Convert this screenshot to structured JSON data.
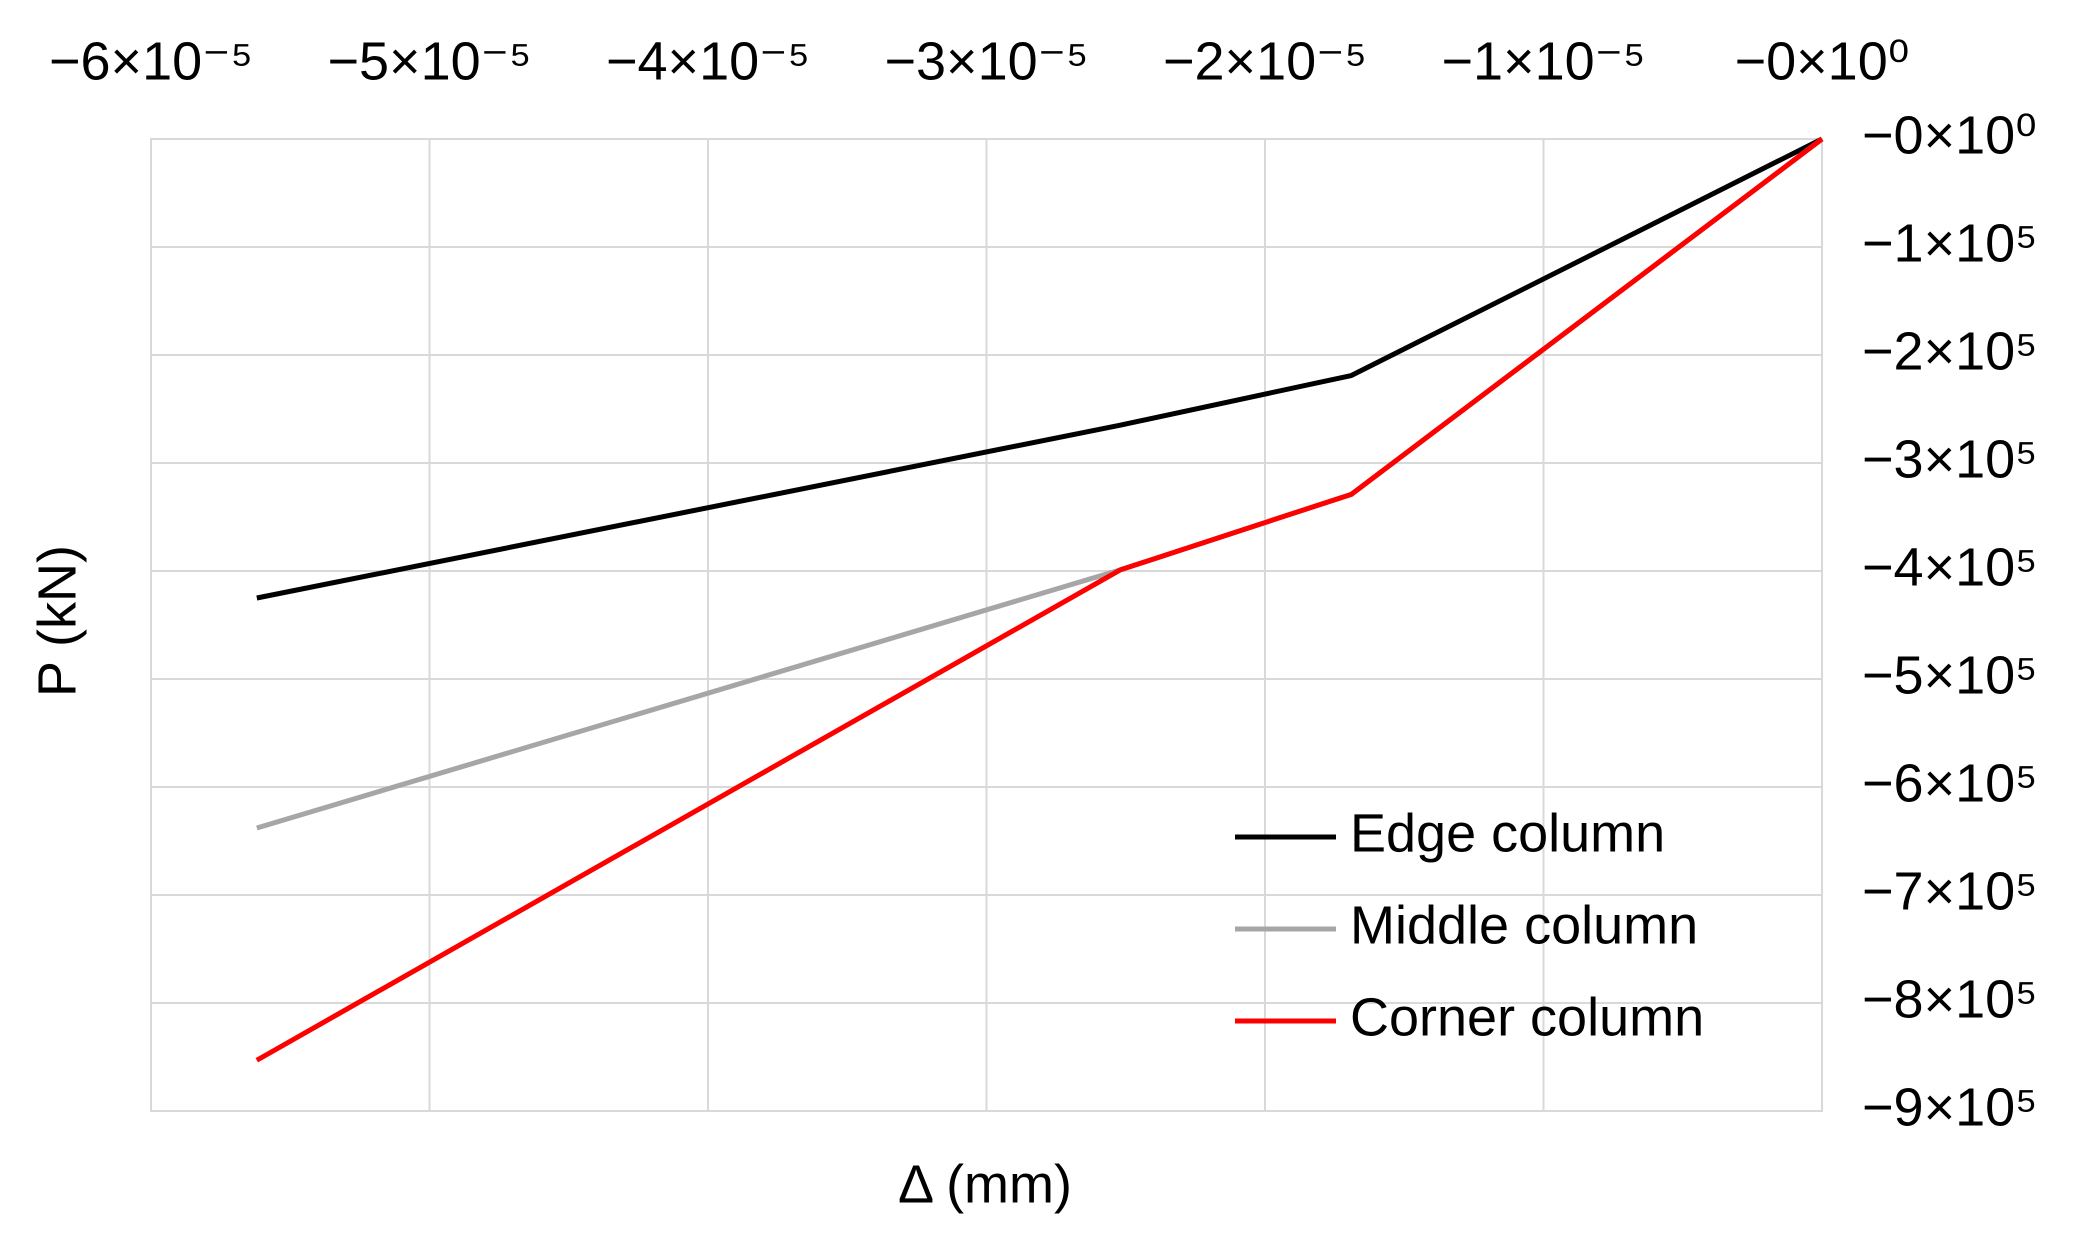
{
  "chart_data": {
    "type": "line",
    "xlabel": "Δ (mm)",
    "ylabel": "P (kN)",
    "x": [
      -5.62e-05,
      -2.52e-05,
      -1.69e-05,
      0
    ],
    "series": [
      {
        "name": "Edge column",
        "color": "#000000",
        "values": [
          -425000,
          -265000,
          -219000,
          0
        ]
      },
      {
        "name": "Middle column",
        "color": "#a6a6a6",
        "values": [
          -638000,
          -399000,
          -329000,
          0
        ]
      },
      {
        "name": "Corner column",
        "color": "#ff0000",
        "values": [
          -853000,
          -399000,
          -329000,
          0
        ]
      }
    ],
    "xlim": [
      -6e-05,
      0
    ],
    "xticks": [
      {
        "value": -6e-05,
        "label": "−6×10⁻⁵"
      },
      {
        "value": -5e-05,
        "label": "−5×10⁻⁵"
      },
      {
        "value": -4e-05,
        "label": "−4×10⁻⁵"
      },
      {
        "value": -3e-05,
        "label": "−3×10⁻⁵"
      },
      {
        "value": -2e-05,
        "label": "−2×10⁻⁵"
      },
      {
        "value": -1e-05,
        "label": "−1×10⁻⁵"
      },
      {
        "value": 0,
        "label": "−0×10⁰"
      }
    ],
    "ylim": [
      -900000,
      0
    ],
    "yticks": [
      {
        "value": 0,
        "label": "−0×10⁰"
      },
      {
        "value": -100000,
        "label": "−1×10⁵"
      },
      {
        "value": -200000,
        "label": "−2×10⁵"
      },
      {
        "value": -300000,
        "label": "−3×10⁵"
      },
      {
        "value": -400000,
        "label": "−4×10⁵"
      },
      {
        "value": -500000,
        "label": "−5×10⁵"
      },
      {
        "value": -600000,
        "label": "−6×10⁵"
      },
      {
        "value": -700000,
        "label": "−7×10⁵"
      },
      {
        "value": -800000,
        "label": "−8×10⁵"
      },
      {
        "value": -900000,
        "label": "−9×10⁵"
      }
    ],
    "grid": true
  }
}
